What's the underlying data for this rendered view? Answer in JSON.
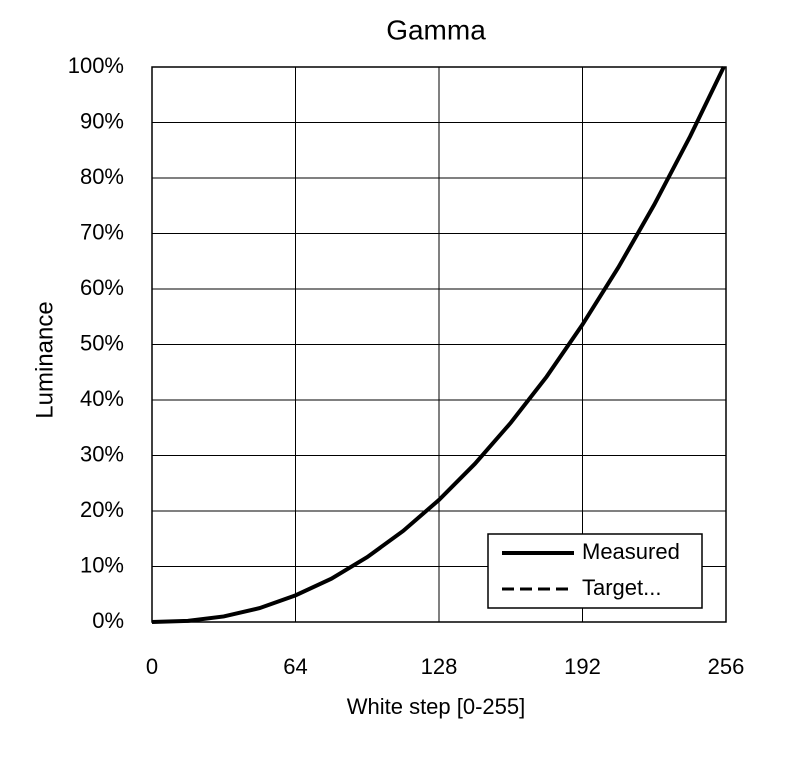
{
  "chart_data": {
    "type": "line",
    "title": "Gamma",
    "x_label": "White step [0-255]",
    "y_label": "Luminance",
    "x": [
      0,
      16,
      32,
      48,
      64,
      80,
      96,
      112,
      128,
      144,
      160,
      176,
      192,
      208,
      224,
      240,
      255
    ],
    "series": [
      {
        "name": "Measured",
        "color": "#000000",
        "dash": "solid",
        "values": [
          0,
          0.2,
          1.0,
          2.5,
          4.8,
          7.8,
          11.7,
          16.4,
          22.0,
          28.5,
          35.9,
          44.2,
          53.6,
          63.9,
          75.2,
          87.5,
          100
        ]
      },
      {
        "name": "Target...",
        "color": "#000000",
        "dash": "dashed",
        "values": [
          0,
          0.2,
          1.0,
          2.5,
          4.8,
          7.8,
          11.7,
          16.4,
          22.0,
          28.5,
          35.9,
          44.2,
          53.6,
          63.9,
          75.2,
          87.5,
          100
        ]
      }
    ],
    "xlim": [
      0,
      256
    ],
    "xticks": [
      0,
      64,
      128,
      192,
      256
    ],
    "ylim": [
      0,
      100
    ],
    "yticks": [
      {
        "value": 0,
        "label": "0%"
      },
      {
        "value": 10,
        "label": "10%"
      },
      {
        "value": 20,
        "label": "20%"
      },
      {
        "value": 30,
        "label": "30%"
      },
      {
        "value": 40,
        "label": "40%"
      },
      {
        "value": 50,
        "label": "50%"
      },
      {
        "value": 60,
        "label": "60%"
      },
      {
        "value": 70,
        "label": "70%"
      },
      {
        "value": 80,
        "label": "80%"
      },
      {
        "value": 90,
        "label": "90%"
      },
      {
        "value": 100,
        "label": "100%"
      }
    ],
    "grid": true,
    "legend": "lower right"
  }
}
